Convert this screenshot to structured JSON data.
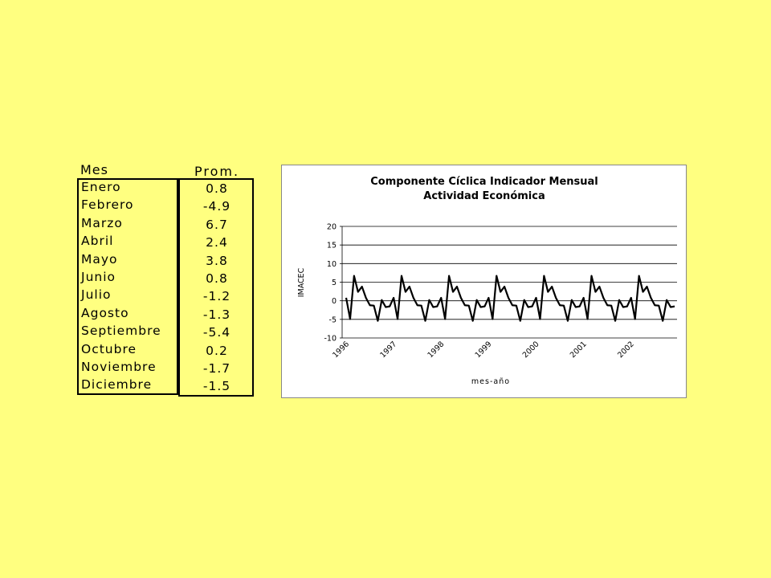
{
  "table": {
    "header_month": "Mes",
    "header_value": "Prom.",
    "rows": [
      {
        "month": "Enero",
        "value": "0.8"
      },
      {
        "month": "Febrero",
        "value": "-4.9"
      },
      {
        "month": "Marzo",
        "value": "6.7"
      },
      {
        "month": "Abril",
        "value": "2.4"
      },
      {
        "month": "Mayo",
        "value": "3.8"
      },
      {
        "month": "Junio",
        "value": "0.8"
      },
      {
        "month": "Julio",
        "value": "-1.2"
      },
      {
        "month": "Agosto",
        "value": "-1.3"
      },
      {
        "month": "Septiembre",
        "value": "-5.4"
      },
      {
        "month": "Octubre",
        "value": "0.2"
      },
      {
        "month": "Noviembre",
        "value": "-1.7"
      },
      {
        "month": "Diciembre",
        "value": "-1.5"
      }
    ]
  },
  "chart_data": {
    "type": "line",
    "title_line1": "Componente Cíclica Indicador Mensual",
    "title_line2": "Actividad Económica",
    "xlabel": "mes-año",
    "ylabel": "IMACEC",
    "ylim": [
      -10,
      20
    ],
    "yticks": [
      20,
      15,
      10,
      5,
      0,
      -5,
      -10
    ],
    "grid": true,
    "legend": "none",
    "x_tick_labels": [
      "1996",
      "1997",
      "1998",
      "1999",
      "2000",
      "2001",
      "2002"
    ],
    "x_start": "1996-01",
    "months": 84,
    "series": [
      {
        "color": "#000000",
        "values": [
          0.8,
          -4.9,
          6.7,
          2.4,
          3.8,
          0.8,
          -1.2,
          -1.3,
          -5.4,
          0.2,
          -1.7,
          -1.5,
          0.8,
          -4.9,
          6.7,
          2.4,
          3.8,
          0.8,
          -1.2,
          -1.3,
          -5.4,
          0.2,
          -1.7,
          -1.5,
          0.8,
          -4.9,
          6.7,
          2.4,
          3.8,
          0.8,
          -1.2,
          -1.3,
          -5.4,
          0.2,
          -1.7,
          -1.5,
          0.8,
          -4.9,
          6.7,
          2.4,
          3.8,
          0.8,
          -1.2,
          -1.3,
          -5.4,
          0.2,
          -1.7,
          -1.5,
          0.8,
          -4.9,
          6.7,
          2.4,
          3.8,
          0.8,
          -1.2,
          -1.3,
          -5.4,
          0.2,
          -1.7,
          -1.5,
          0.8,
          -4.9,
          6.7,
          2.4,
          3.8,
          0.8,
          -1.2,
          -1.3,
          -5.4,
          0.2,
          -1.7,
          -1.5,
          0.8,
          -4.9,
          6.7,
          2.4,
          3.8,
          0.8,
          -1.2,
          -1.3,
          -5.4,
          0.2,
          -1.7,
          -1.5
        ]
      }
    ]
  }
}
